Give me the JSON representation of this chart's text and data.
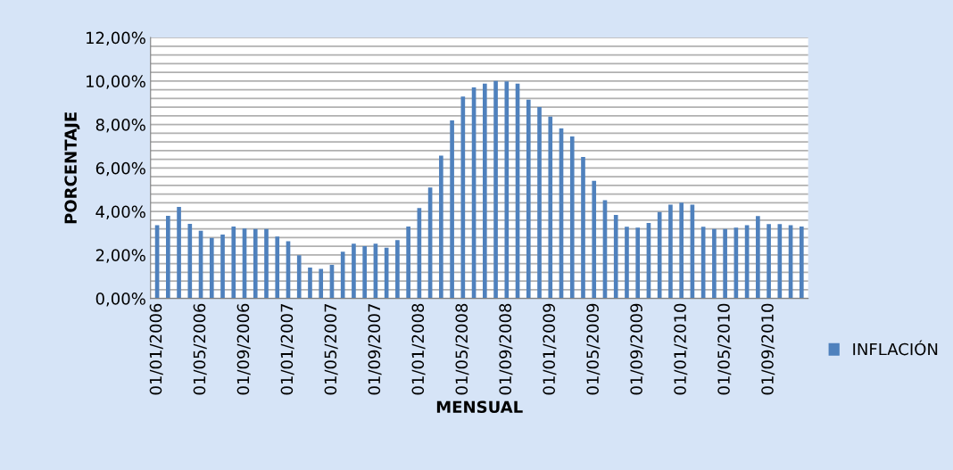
{
  "chart_data": {
    "type": "bar",
    "xlabel": "MENSUAL",
    "ylabel": "PORCENTAJE",
    "categories": [
      "01/01/2006",
      null,
      null,
      null,
      "01/05/2006",
      null,
      null,
      null,
      "01/09/2006",
      null,
      null,
      null,
      "01/01/2007",
      null,
      null,
      null,
      "01/05/2007",
      null,
      null,
      null,
      "01/09/2007",
      null,
      null,
      null,
      "01/01/2008",
      null,
      null,
      null,
      "01/05/2008",
      null,
      null,
      null,
      "01/09/2008",
      null,
      null,
      null,
      "01/01/2009",
      null,
      null,
      null,
      "01/05/2009",
      null,
      null,
      null,
      "01/09/2009",
      null,
      null,
      null,
      "01/01/2010",
      null,
      null,
      null,
      "01/05/2010",
      null,
      null,
      null,
      "01/09/2010",
      null,
      null,
      null
    ],
    "series": [
      {
        "name": "INFLACIÓN",
        "color": "#4f81bd",
        "values": [
          3.37,
          3.8,
          4.21,
          3.43,
          3.11,
          2.79,
          2.94,
          3.31,
          3.22,
          3.2,
          3.2,
          2.85,
          2.63,
          1.99,
          1.42,
          1.36,
          1.54,
          2.15,
          2.52,
          2.41,
          2.52,
          2.33,
          2.68,
          3.31,
          4.16,
          5.1,
          6.57,
          8.19,
          9.29,
          9.71,
          9.88,
          10.01,
          9.99,
          9.88,
          9.14,
          8.81,
          8.37,
          7.82,
          7.45,
          6.51,
          5.41,
          4.52,
          3.84,
          3.3,
          3.26,
          3.47,
          3.98,
          4.31,
          4.41,
          4.31,
          3.3,
          3.2,
          3.2,
          3.26,
          3.37,
          3.79,
          3.42,
          3.42,
          3.37,
          3.31
        ]
      }
    ],
    "ylim": [
      0,
      12
    ],
    "yticks": [
      {
        "value": 0,
        "label": "0,00%"
      },
      {
        "value": 0.4,
        "label": null
      },
      {
        "value": 0.8,
        "label": null
      },
      {
        "value": 1.2,
        "label": null
      },
      {
        "value": 1.6,
        "label": null
      },
      {
        "value": 2,
        "label": "2,00%"
      },
      {
        "value": 2.4,
        "label": null
      },
      {
        "value": 2.8,
        "label": null
      },
      {
        "value": 3.2,
        "label": null
      },
      {
        "value": 3.6,
        "label": null
      },
      {
        "value": 4,
        "label": "4,00%"
      },
      {
        "value": 4.4,
        "label": null
      },
      {
        "value": 4.8,
        "label": null
      },
      {
        "value": 5.2,
        "label": null
      },
      {
        "value": 5.6,
        "label": null
      },
      {
        "value": 6,
        "label": "6,00%"
      },
      {
        "value": 6.4,
        "label": null
      },
      {
        "value": 6.8,
        "label": null
      },
      {
        "value": 7.2,
        "label": null
      },
      {
        "value": 7.6,
        "label": null
      },
      {
        "value": 8,
        "label": "8,00%"
      },
      {
        "value": 8.4,
        "label": null
      },
      {
        "value": 8.8,
        "label": null
      },
      {
        "value": 9.2,
        "label": null
      },
      {
        "value": 9.6,
        "label": null
      },
      {
        "value": 10,
        "label": "10,00%"
      },
      {
        "value": 10.4,
        "label": null
      },
      {
        "value": 10.8,
        "label": null
      },
      {
        "value": 11.2,
        "label": null
      },
      {
        "value": 11.6,
        "label": null
      },
      {
        "value": 12,
        "label": "12,00%"
      }
    ],
    "grid": "y",
    "legend": "right"
  }
}
